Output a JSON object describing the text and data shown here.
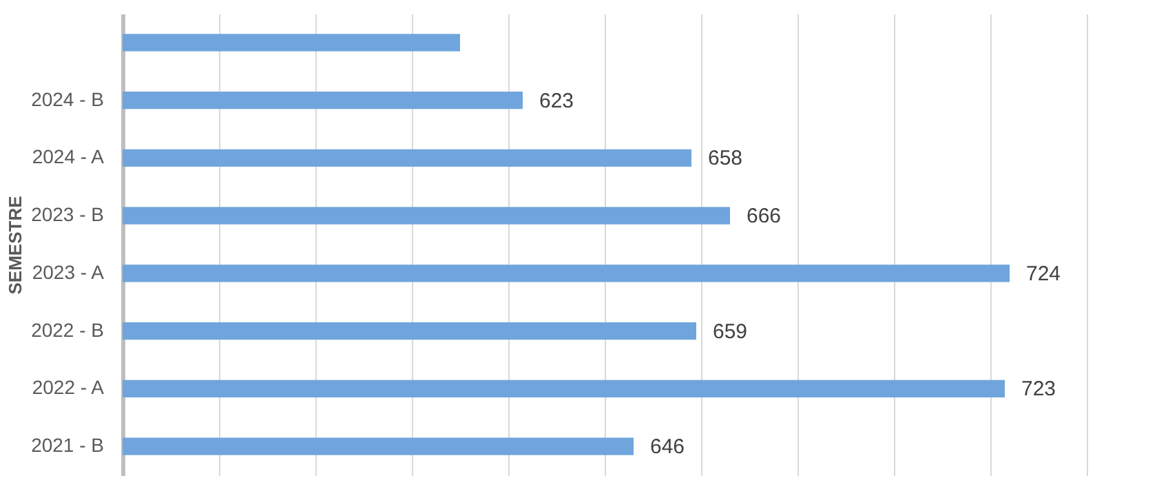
{
  "chart_data": {
    "type": "bar",
    "orientation": "horizontal",
    "ylabel": "SEMESTRE",
    "categories": [
      null,
      "2024 - B",
      "2024 - A",
      "2023 - B",
      "2023 - A",
      "2022 - B",
      "2022 - A",
      "2021 - B"
    ],
    "values": [
      610,
      623,
      658,
      666,
      724,
      659,
      723,
      646
    ],
    "value_labels": [
      null,
      "623",
      "658",
      "666",
      "724",
      "659",
      "723",
      "646"
    ],
    "color": "#6fa5dc",
    "xlim": [
      540,
      740
    ],
    "xticks": [
      {
        "value": 540,
        "label": null
      },
      {
        "value": 560,
        "label": null
      },
      {
        "value": 580,
        "label": null
      },
      {
        "value": 600,
        "label": null
      },
      {
        "value": 620,
        "label": null
      },
      {
        "value": 640,
        "label": null
      },
      {
        "value": 660,
        "label": null
      },
      {
        "value": 680,
        "label": null
      },
      {
        "value": 700,
        "label": null
      },
      {
        "value": 720,
        "label": null
      },
      {
        "value": 740,
        "label": null
      }
    ],
    "grid": "x",
    "tick_labels": "y"
  }
}
